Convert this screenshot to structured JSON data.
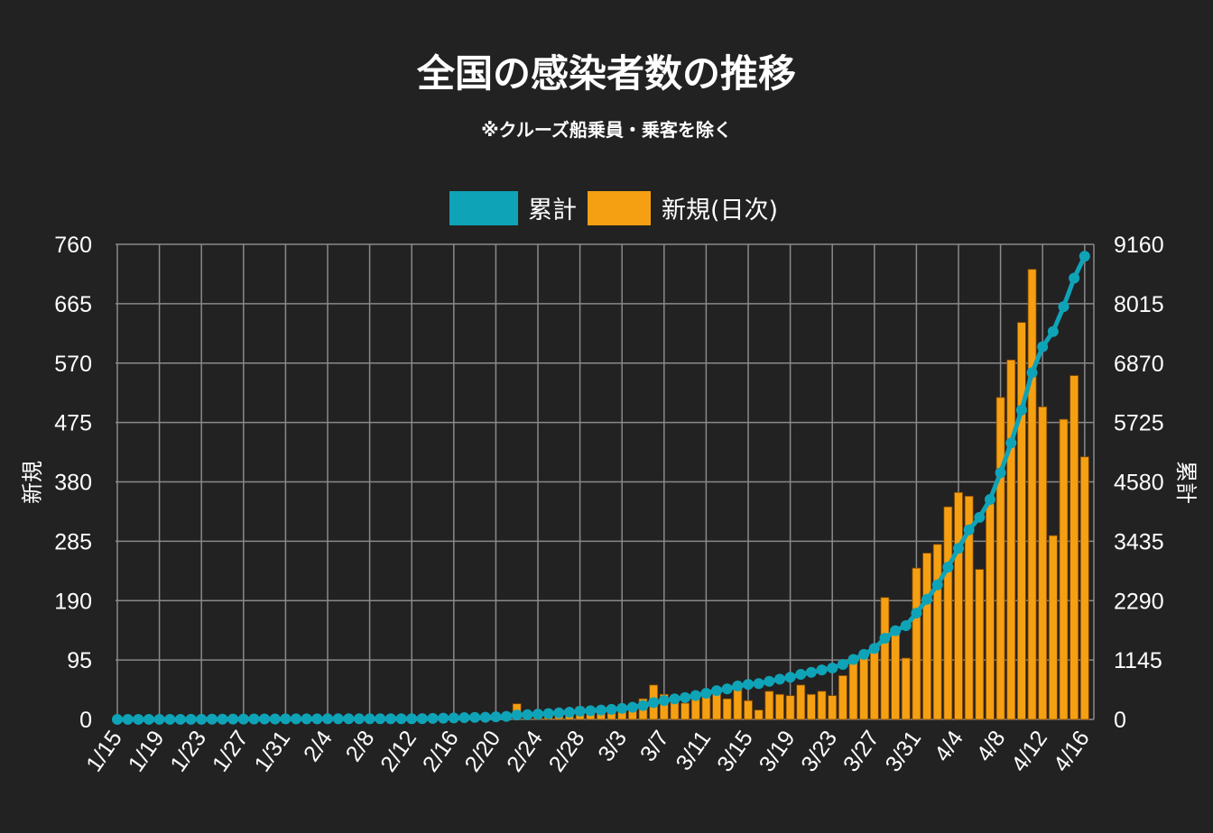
{
  "chart_data": {
    "type": "bar+line",
    "title": "全国の感染者数の推移",
    "subtitle": "※クルーズ船乗員・乗客を除く",
    "legend": [
      {
        "label": "累計",
        "color": "#0fa3b8"
      },
      {
        "label": "新規(日次)",
        "color": "#f5a012"
      }
    ],
    "legend_position": "top-center",
    "ylabel_left": "新規",
    "ylabel_right": "累計",
    "ylim_left": [
      0,
      760
    ],
    "ylim_right": [
      0,
      9160
    ],
    "yticks_left": [
      "0",
      "95",
      "190",
      "285",
      "380",
      "475",
      "570",
      "665",
      "760"
    ],
    "yticks_right": [
      "0",
      "1145",
      "2290",
      "3435",
      "4580",
      "5725",
      "6870",
      "8015",
      "9160"
    ],
    "x_start": "1/15",
    "x_end": "4/16",
    "xticks": [
      "1/15",
      "1/19",
      "1/23",
      "1/27",
      "1/31",
      "2/4",
      "2/8",
      "2/12",
      "2/16",
      "2/20",
      "2/24",
      "2/28",
      "3/3",
      "3/7",
      "3/11",
      "3/15",
      "3/19",
      "3/23",
      "3/27",
      "3/31",
      "4/4",
      "4/8",
      "4/12",
      "4/16"
    ],
    "grid": true,
    "series": [
      {
        "name": "新規(日次)",
        "type": "bar",
        "axis": "left",
        "values": [
          1,
          0,
          0,
          0,
          0,
          0,
          0,
          1,
          1,
          1,
          0,
          2,
          1,
          1,
          1,
          0,
          1,
          0,
          0,
          0,
          2,
          0,
          0,
          0,
          0,
          0,
          1,
          0,
          0,
          2,
          5,
          4,
          4,
          6,
          5,
          3,
          8,
          9,
          25,
          8,
          10,
          11,
          12,
          14,
          20,
          9,
          12,
          14,
          18,
          23,
          33,
          55,
          40,
          33,
          26,
          38,
          45,
          50,
          33,
          57,
          30,
          15,
          45,
          40,
          38,
          55,
          40,
          45,
          38,
          70,
          95,
          98,
          115,
          195,
          145,
          98,
          242,
          266,
          280,
          340,
          363,
          357,
          240,
          345,
          515,
          575,
          635,
          720,
          500,
          294,
          480,
          550,
          420
        ]
      },
      {
        "name": "累計",
        "type": "line",
        "axis": "right",
        "values": [
          1,
          1,
          1,
          1,
          1,
          1,
          1,
          2,
          3,
          4,
          4,
          6,
          7,
          8,
          9,
          9,
          10,
          10,
          10,
          10,
          12,
          12,
          12,
          12,
          12,
          12,
          13,
          13,
          13,
          15,
          20,
          24,
          28,
          34,
          39,
          42,
          50,
          59,
          84,
          92,
          102,
          113,
          125,
          139,
          159,
          168,
          180,
          194,
          212,
          235,
          268,
          323,
          363,
          396,
          422,
          460,
          505,
          555,
          588,
          645,
          675,
          690,
          735,
          775,
          813,
          868,
          908,
          953,
          991,
          1061,
          1156,
          1254,
          1369,
          1564,
          1709,
          1807,
          2049,
          2315,
          2595,
          2935,
          3298,
          3655,
          3895,
          4240,
          4755,
          5330,
          5965,
          6685,
          7185,
          7479,
          7959,
          8509,
          8929
        ]
      }
    ]
  }
}
